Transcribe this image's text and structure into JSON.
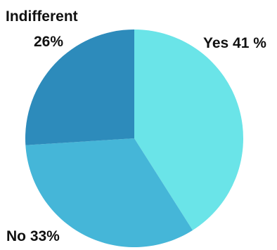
{
  "chart_data": {
    "type": "pie",
    "title": "",
    "slices": [
      {
        "label": "Yes",
        "value": 41,
        "label_text": "Yes 41 %",
        "color": "#6ae4e8"
      },
      {
        "label": "No",
        "value": 33,
        "label_text": "No 33%",
        "color": "#45b6d8"
      },
      {
        "label": "Indifferent",
        "value": 26,
        "label_text_line1": "Indifferent",
        "label_text_line2": "26%",
        "color": "#2d8bbb"
      }
    ],
    "start_angle_deg": 0,
    "direction": "clockwise",
    "legend": "none"
  }
}
